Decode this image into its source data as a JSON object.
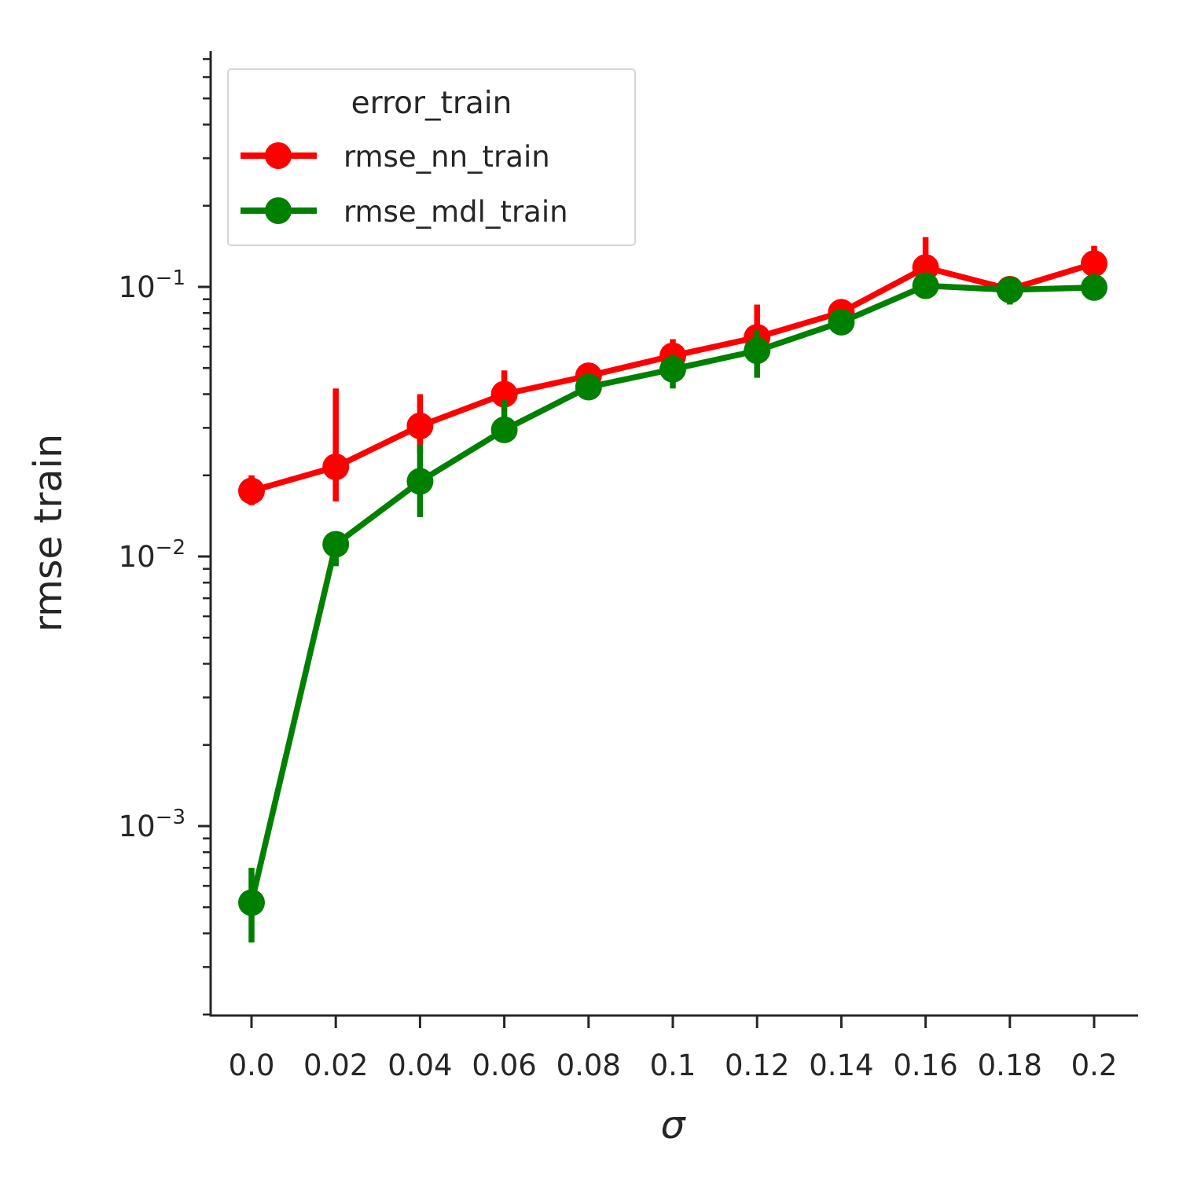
{
  "chart_data": {
    "type": "line",
    "xlabel": "σ",
    "ylabel": "rmse train",
    "yscale": "log",
    "ylim": [
      0.0002,
      0.7
    ],
    "categories": [
      "0.0",
      "0.02",
      "0.04",
      "0.06",
      "0.08",
      "0.1",
      "0.12",
      "0.14",
      "0.16",
      "0.18",
      "0.2"
    ],
    "y_ticks": [
      {
        "value": 0.1,
        "base": "10",
        "exp": "−1"
      },
      {
        "value": 0.01,
        "base": "10",
        "exp": "−2"
      },
      {
        "value": 0.001,
        "base": "10",
        "exp": "−3"
      }
    ],
    "grid": false,
    "legend": {
      "title": "error_train",
      "placement": "top-left"
    },
    "series": [
      {
        "name": "rmse_nn_train",
        "color": "#ff0000",
        "values": [
          0.0175,
          0.0215,
          0.0305,
          0.04,
          0.0468,
          0.0555,
          0.065,
          0.0805,
          0.118,
          0.098,
          0.122
        ],
        "error_low": [
          0.0155,
          0.016,
          0.024,
          0.035,
          0.0445,
          0.048,
          0.058,
          0.074,
          0.1,
          0.088,
          0.108
        ],
        "error_high": [
          0.02,
          0.042,
          0.04,
          0.049,
          0.049,
          0.064,
          0.086,
          0.087,
          0.153,
          0.104,
          0.142
        ]
      },
      {
        "name": "rmse_mdl_train",
        "color": "#008000",
        "values": [
          0.00052,
          0.0111,
          0.019,
          0.0295,
          0.0425,
          0.0495,
          0.058,
          0.074,
          0.101,
          0.0975,
          0.0995
        ],
        "error_low": [
          0.00037,
          0.0092,
          0.014,
          0.027,
          0.0395,
          0.042,
          0.046,
          0.068,
          0.096,
          0.086,
          0.096
        ],
        "error_high": [
          0.0007,
          0.0122,
          0.026,
          0.038,
          0.046,
          0.056,
          0.069,
          0.08,
          0.106,
          0.101,
          0.104
        ]
      }
    ]
  }
}
